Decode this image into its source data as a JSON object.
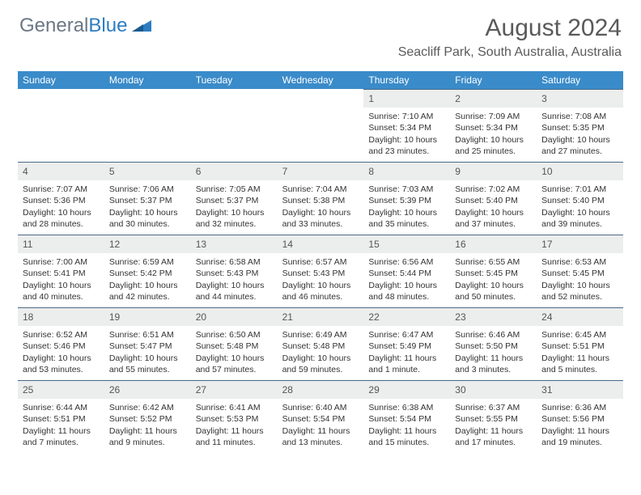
{
  "logo": {
    "general": "General",
    "blue": "Blue"
  },
  "header": {
    "month_title": "August 2024",
    "location": "Seacliff Park, South Australia, Australia"
  },
  "colors": {
    "header_bar": "#3a8bc9",
    "day_number_bg": "#eceded",
    "cell_border": "#4a6a87",
    "text": "#333333",
    "title_text": "#5a5a5a",
    "logo_gray": "#6b7785",
    "logo_blue": "#2b7dc2",
    "background": "#ffffff"
  },
  "weekdays": [
    "Sunday",
    "Monday",
    "Tuesday",
    "Wednesday",
    "Thursday",
    "Friday",
    "Saturday"
  ],
  "leading_blanks": 4,
  "days": [
    {
      "n": "1",
      "sunrise": "Sunrise: 7:10 AM",
      "sunset": "Sunset: 5:34 PM",
      "day1": "Daylight: 10 hours",
      "day2": "and 23 minutes."
    },
    {
      "n": "2",
      "sunrise": "Sunrise: 7:09 AM",
      "sunset": "Sunset: 5:34 PM",
      "day1": "Daylight: 10 hours",
      "day2": "and 25 minutes."
    },
    {
      "n": "3",
      "sunrise": "Sunrise: 7:08 AM",
      "sunset": "Sunset: 5:35 PM",
      "day1": "Daylight: 10 hours",
      "day2": "and 27 minutes."
    },
    {
      "n": "4",
      "sunrise": "Sunrise: 7:07 AM",
      "sunset": "Sunset: 5:36 PM",
      "day1": "Daylight: 10 hours",
      "day2": "and 28 minutes."
    },
    {
      "n": "5",
      "sunrise": "Sunrise: 7:06 AM",
      "sunset": "Sunset: 5:37 PM",
      "day1": "Daylight: 10 hours",
      "day2": "and 30 minutes."
    },
    {
      "n": "6",
      "sunrise": "Sunrise: 7:05 AM",
      "sunset": "Sunset: 5:37 PM",
      "day1": "Daylight: 10 hours",
      "day2": "and 32 minutes."
    },
    {
      "n": "7",
      "sunrise": "Sunrise: 7:04 AM",
      "sunset": "Sunset: 5:38 PM",
      "day1": "Daylight: 10 hours",
      "day2": "and 33 minutes."
    },
    {
      "n": "8",
      "sunrise": "Sunrise: 7:03 AM",
      "sunset": "Sunset: 5:39 PM",
      "day1": "Daylight: 10 hours",
      "day2": "and 35 minutes."
    },
    {
      "n": "9",
      "sunrise": "Sunrise: 7:02 AM",
      "sunset": "Sunset: 5:40 PM",
      "day1": "Daylight: 10 hours",
      "day2": "and 37 minutes."
    },
    {
      "n": "10",
      "sunrise": "Sunrise: 7:01 AM",
      "sunset": "Sunset: 5:40 PM",
      "day1": "Daylight: 10 hours",
      "day2": "and 39 minutes."
    },
    {
      "n": "11",
      "sunrise": "Sunrise: 7:00 AM",
      "sunset": "Sunset: 5:41 PM",
      "day1": "Daylight: 10 hours",
      "day2": "and 40 minutes."
    },
    {
      "n": "12",
      "sunrise": "Sunrise: 6:59 AM",
      "sunset": "Sunset: 5:42 PM",
      "day1": "Daylight: 10 hours",
      "day2": "and 42 minutes."
    },
    {
      "n": "13",
      "sunrise": "Sunrise: 6:58 AM",
      "sunset": "Sunset: 5:43 PM",
      "day1": "Daylight: 10 hours",
      "day2": "and 44 minutes."
    },
    {
      "n": "14",
      "sunrise": "Sunrise: 6:57 AM",
      "sunset": "Sunset: 5:43 PM",
      "day1": "Daylight: 10 hours",
      "day2": "and 46 minutes."
    },
    {
      "n": "15",
      "sunrise": "Sunrise: 6:56 AM",
      "sunset": "Sunset: 5:44 PM",
      "day1": "Daylight: 10 hours",
      "day2": "and 48 minutes."
    },
    {
      "n": "16",
      "sunrise": "Sunrise: 6:55 AM",
      "sunset": "Sunset: 5:45 PM",
      "day1": "Daylight: 10 hours",
      "day2": "and 50 minutes."
    },
    {
      "n": "17",
      "sunrise": "Sunrise: 6:53 AM",
      "sunset": "Sunset: 5:45 PM",
      "day1": "Daylight: 10 hours",
      "day2": "and 52 minutes."
    },
    {
      "n": "18",
      "sunrise": "Sunrise: 6:52 AM",
      "sunset": "Sunset: 5:46 PM",
      "day1": "Daylight: 10 hours",
      "day2": "and 53 minutes."
    },
    {
      "n": "19",
      "sunrise": "Sunrise: 6:51 AM",
      "sunset": "Sunset: 5:47 PM",
      "day1": "Daylight: 10 hours",
      "day2": "and 55 minutes."
    },
    {
      "n": "20",
      "sunrise": "Sunrise: 6:50 AM",
      "sunset": "Sunset: 5:48 PM",
      "day1": "Daylight: 10 hours",
      "day2": "and 57 minutes."
    },
    {
      "n": "21",
      "sunrise": "Sunrise: 6:49 AM",
      "sunset": "Sunset: 5:48 PM",
      "day1": "Daylight: 10 hours",
      "day2": "and 59 minutes."
    },
    {
      "n": "22",
      "sunrise": "Sunrise: 6:47 AM",
      "sunset": "Sunset: 5:49 PM",
      "day1": "Daylight: 11 hours",
      "day2": "and 1 minute."
    },
    {
      "n": "23",
      "sunrise": "Sunrise: 6:46 AM",
      "sunset": "Sunset: 5:50 PM",
      "day1": "Daylight: 11 hours",
      "day2": "and 3 minutes."
    },
    {
      "n": "24",
      "sunrise": "Sunrise: 6:45 AM",
      "sunset": "Sunset: 5:51 PM",
      "day1": "Daylight: 11 hours",
      "day2": "and 5 minutes."
    },
    {
      "n": "25",
      "sunrise": "Sunrise: 6:44 AM",
      "sunset": "Sunset: 5:51 PM",
      "day1": "Daylight: 11 hours",
      "day2": "and 7 minutes."
    },
    {
      "n": "26",
      "sunrise": "Sunrise: 6:42 AM",
      "sunset": "Sunset: 5:52 PM",
      "day1": "Daylight: 11 hours",
      "day2": "and 9 minutes."
    },
    {
      "n": "27",
      "sunrise": "Sunrise: 6:41 AM",
      "sunset": "Sunset: 5:53 PM",
      "day1": "Daylight: 11 hours",
      "day2": "and 11 minutes."
    },
    {
      "n": "28",
      "sunrise": "Sunrise: 6:40 AM",
      "sunset": "Sunset: 5:54 PM",
      "day1": "Daylight: 11 hours",
      "day2": "and 13 minutes."
    },
    {
      "n": "29",
      "sunrise": "Sunrise: 6:38 AM",
      "sunset": "Sunset: 5:54 PM",
      "day1": "Daylight: 11 hours",
      "day2": "and 15 minutes."
    },
    {
      "n": "30",
      "sunrise": "Sunrise: 6:37 AM",
      "sunset": "Sunset: 5:55 PM",
      "day1": "Daylight: 11 hours",
      "day2": "and 17 minutes."
    },
    {
      "n": "31",
      "sunrise": "Sunrise: 6:36 AM",
      "sunset": "Sunset: 5:56 PM",
      "day1": "Daylight: 11 hours",
      "day2": "and 19 minutes."
    }
  ]
}
